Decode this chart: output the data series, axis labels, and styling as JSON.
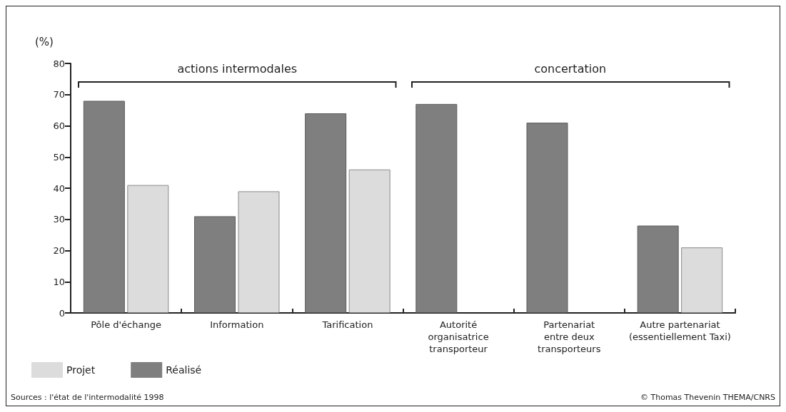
{
  "chart_data": {
    "type": "bar",
    "ylabel": "(%)",
    "categories": [
      "Pôle d'échange",
      "Information",
      "Tarification",
      "Autorité\norganisatrice\ntransporteur",
      "Partenariat\nentre deux\ntransporteurs",
      "Autre partenariat\n(essentiellement Taxi)"
    ],
    "series": [
      {
        "name": "Réalisé",
        "color": "#7f7f7f",
        "values": [
          68,
          31,
          64,
          67,
          61,
          28
        ]
      },
      {
        "name": "Projet",
        "color": "#dcdcdc",
        "values": [
          41,
          39,
          46,
          null,
          null,
          21
        ]
      }
    ],
    "ylim": [
      0,
      80
    ],
    "yticks": [
      0,
      10,
      20,
      30,
      40,
      50,
      60,
      70,
      80
    ],
    "grid": false,
    "legend": "bottom left",
    "annotations": [
      "actions intermodales",
      "concertation",
      "Sources : l'état de l'intermodalité 1998",
      "© Thomas Thevenin THEMA/CNRS"
    ]
  }
}
